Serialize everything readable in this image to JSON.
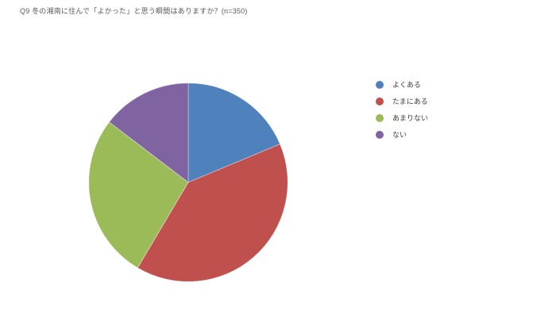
{
  "header": {
    "title": "Q9 冬の湘南に住んで「よかった」と思う瞬間はありますか？(n=350)"
  },
  "chart_data": {
    "type": "pie",
    "title": "Q9 冬の湘南に住んで「よかった」と思う瞬間はありますか？(n=350)",
    "sample_size": 350,
    "categories": [
      "よくある",
      "たまにある",
      "あまりない",
      "ない"
    ],
    "values_percent": [
      18.7,
      39.8,
      26.9,
      14.6
    ],
    "colors": [
      "#4f81bd",
      "#c0504d",
      "#9bbb59",
      "#8064a2"
    ],
    "start_angle_deg": 0,
    "direction": "clockwise",
    "legend_position": "right",
    "data_labels": "none",
    "background": "#ffffff"
  },
  "legend": {
    "items": [
      {
        "label": "よくある",
        "color": "#4f81bd"
      },
      {
        "label": "たまにある",
        "color": "#c0504d"
      },
      {
        "label": "あまりない",
        "color": "#9bbb59"
      },
      {
        "label": "ない",
        "color": "#8064a2"
      }
    ]
  }
}
